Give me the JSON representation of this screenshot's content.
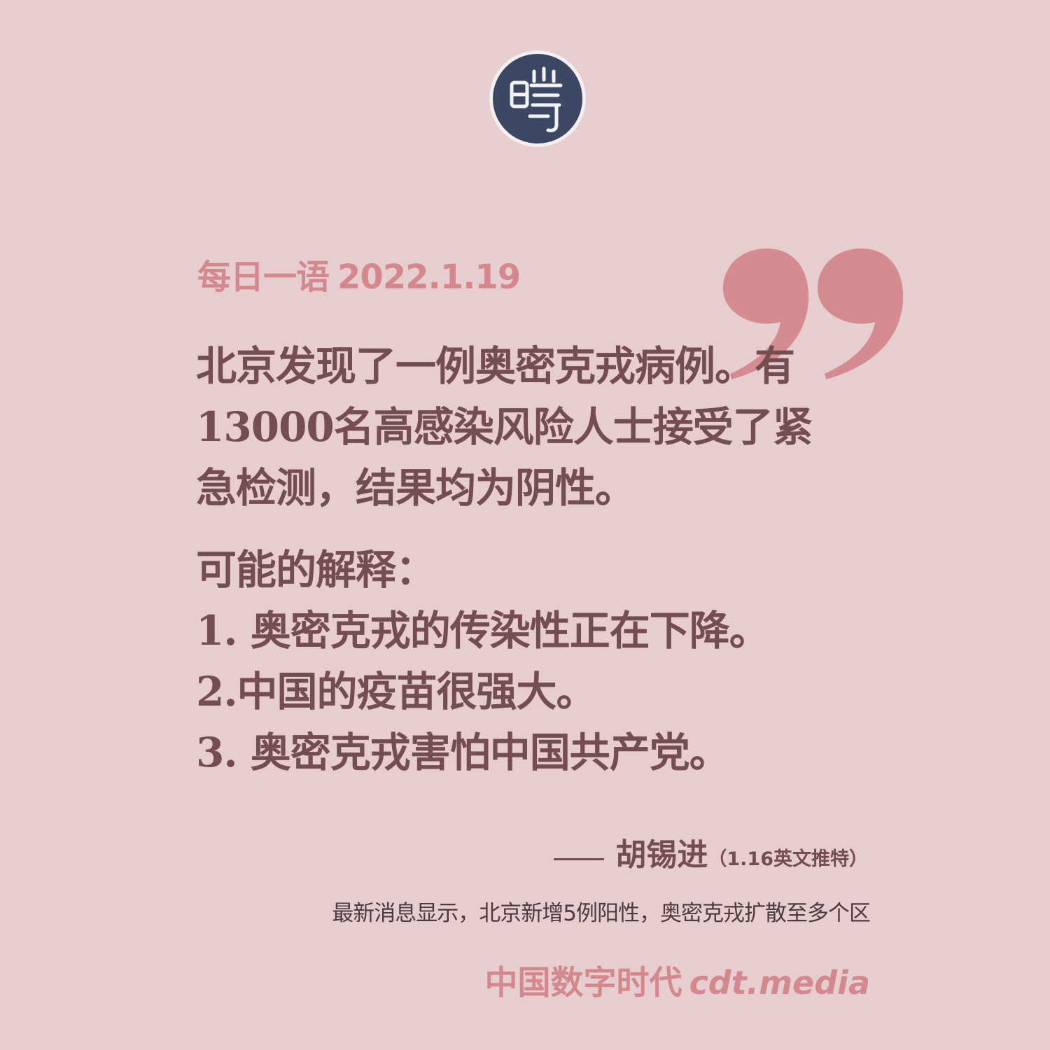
{
  "colors": {
    "background": "#e8cdd0",
    "accent": "#d3888d",
    "body_text": "#744d50",
    "logo_fill": "#3c4763"
  },
  "logo": {
    "icon": "cdt-seal-logo"
  },
  "decor": {
    "icon": "closing-quote-icon"
  },
  "header": {
    "label": "每日一语",
    "date": "2022.1.19"
  },
  "quote": {
    "lines": [
      "北京发现了一例奥密克戎病例。有",
      "13000名高感染风险人士接受了紧",
      "急检测，结果均为阴性。",
      "可能的解释：",
      "1. 奥密克戎的传染性正在下降。",
      "2.中国的疫苗很强大。",
      "3. 奥密克戎害怕中国共产党。"
    ]
  },
  "attribution": {
    "name": "胡锡进",
    "note": "（1.16英文推特）"
  },
  "caption": "最新消息显示，北京新增5例阳性，奥密克戎扩散至多个区",
  "footer": {
    "brand": "中国数字时代",
    "url": "cdt.media"
  }
}
